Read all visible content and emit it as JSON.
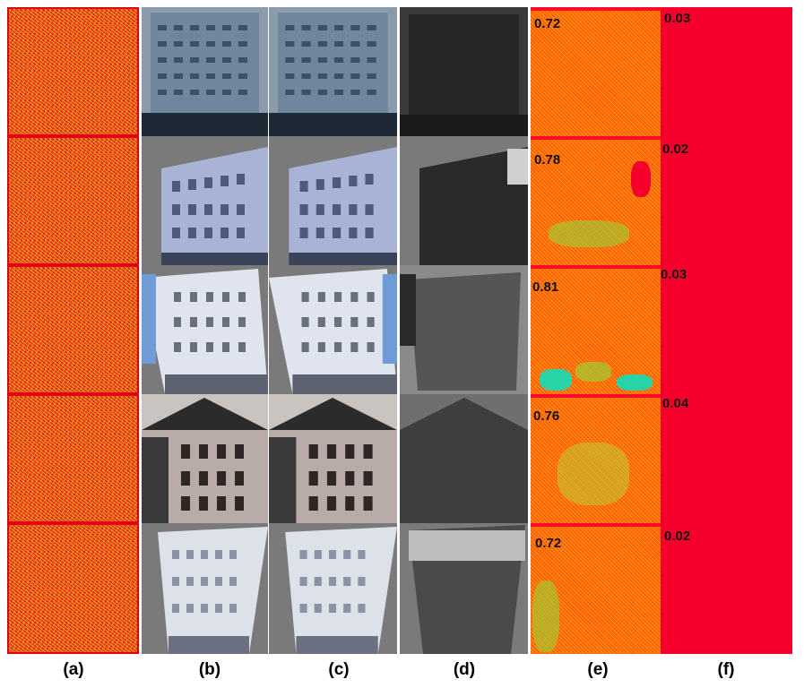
{
  "columns": {
    "a": {
      "label": "(a)"
    },
    "b": {
      "label": "(b)"
    },
    "c": {
      "label": "(c)"
    },
    "d": {
      "label": "(d)"
    },
    "e": {
      "label": "(e)",
      "scores": [
        "0.72",
        "0.78",
        "0.81",
        "0.76",
        "0.72"
      ]
    },
    "f": {
      "label": "(f)",
      "scores": [
        "0.03",
        "0.02",
        "0.03",
        "0.04",
        "0.02"
      ]
    }
  },
  "colors": {
    "noise_red": "#f01e24",
    "heat_orange": "#ff5a10",
    "map_red": "#f5002c"
  }
}
